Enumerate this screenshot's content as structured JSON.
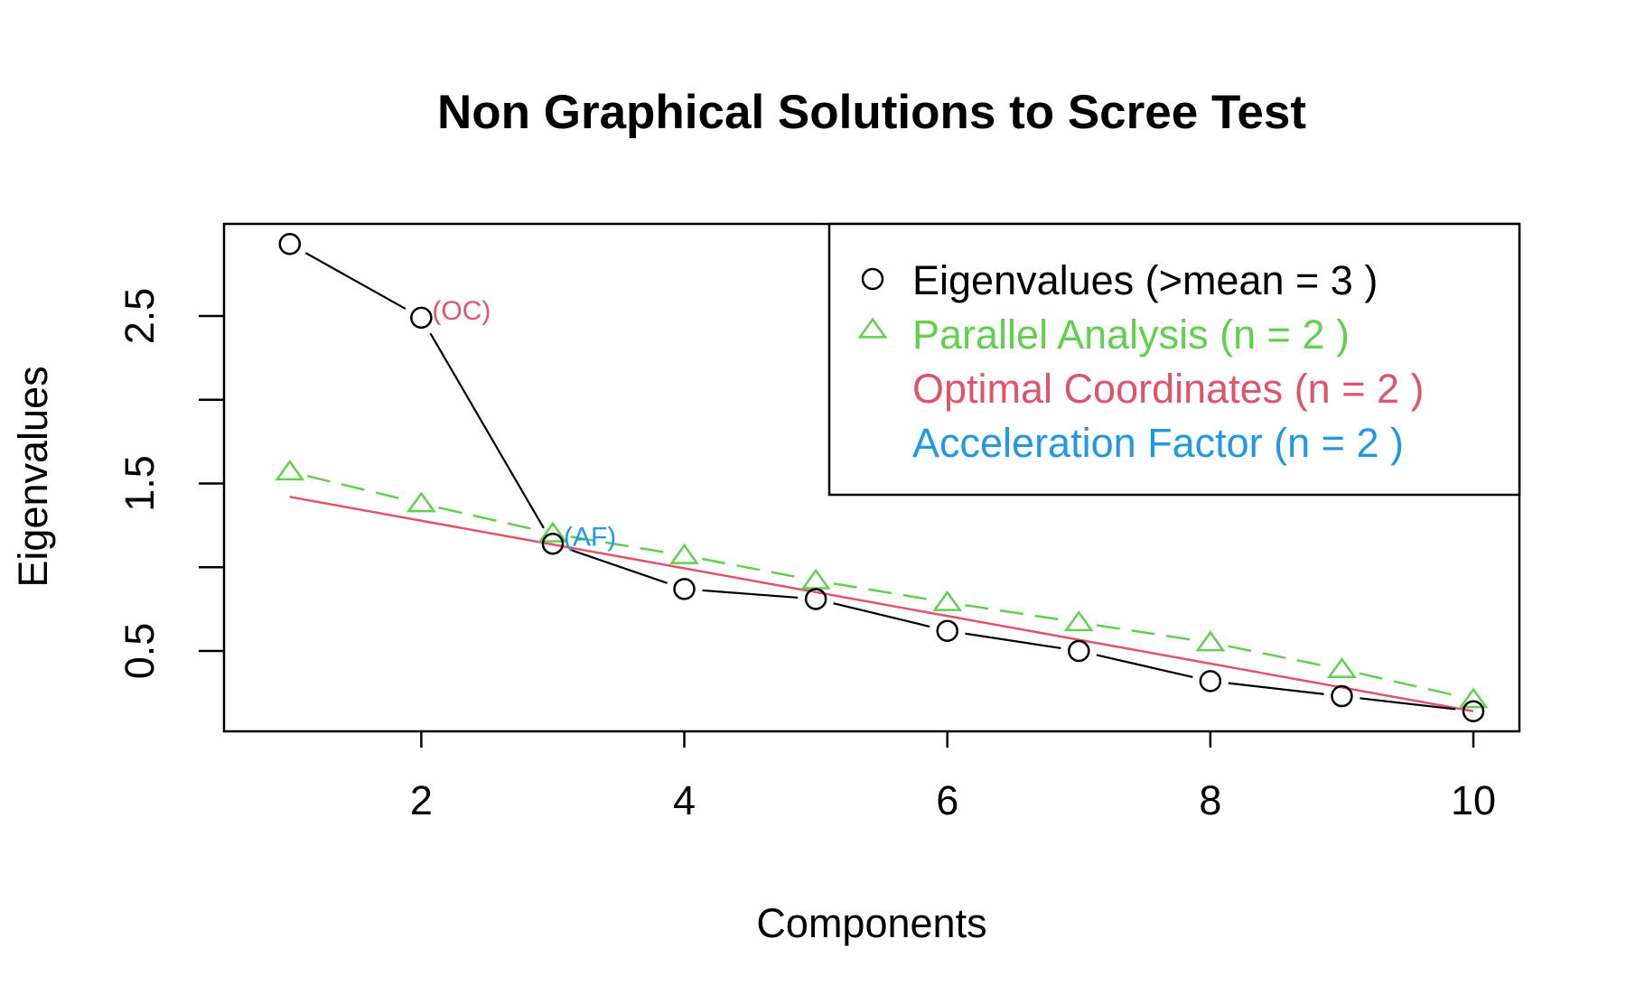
{
  "chart_data": {
    "type": "scatter",
    "title": "Non Graphical Solutions to Scree Test",
    "xlabel": "Components",
    "ylabel": "Eigenvalues",
    "xlim": [
      0.5,
      10.35
    ],
    "ylim": [
      0.02,
      3.05
    ],
    "x_ticks": [
      2,
      4,
      6,
      8,
      10
    ],
    "y_ticks": [
      0.5,
      1.0,
      1.5,
      2.0,
      2.5
    ],
    "y_tick_labels": [
      "0.5",
      "",
      "1.5",
      "",
      "2.5"
    ],
    "grid": false,
    "legend_position": "top-right",
    "series": [
      {
        "name": "Eigenvalues (>mean  =  3 )",
        "marker": "circle",
        "color": "#000000",
        "x": [
          1,
          2,
          3,
          4,
          5,
          6,
          7,
          8,
          9,
          10
        ],
        "values": [
          2.93,
          2.49,
          1.14,
          0.87,
          0.81,
          0.62,
          0.5,
          0.32,
          0.23,
          0.14
        ]
      },
      {
        "name": "Parallel Analysis (n =  2 )",
        "marker": "triangle",
        "color": "#61D04F",
        "x": [
          1,
          2,
          3,
          4,
          5,
          6,
          7,
          8,
          9,
          10
        ],
        "values": [
          1.57,
          1.38,
          1.2,
          1.07,
          0.92,
          0.79,
          0.67,
          0.55,
          0.39,
          0.21
        ]
      },
      {
        "name": "Optimal Coordinates (n =  2 )",
        "marker": "none",
        "color": "#DF536B",
        "x": [
          1,
          10
        ],
        "values": [
          1.42,
          0.14
        ]
      },
      {
        "name": "Acceleration Factor (n =  2 )",
        "marker": "none",
        "color": "#2297E6",
        "x": [],
        "values": []
      }
    ],
    "annotations": [
      {
        "text": "(OC)",
        "x": 2,
        "y": 2.49,
        "color": "#DF536B"
      },
      {
        "text": "(AF)",
        "x": 3,
        "y": 1.14,
        "color": "#2297E6"
      }
    ]
  }
}
